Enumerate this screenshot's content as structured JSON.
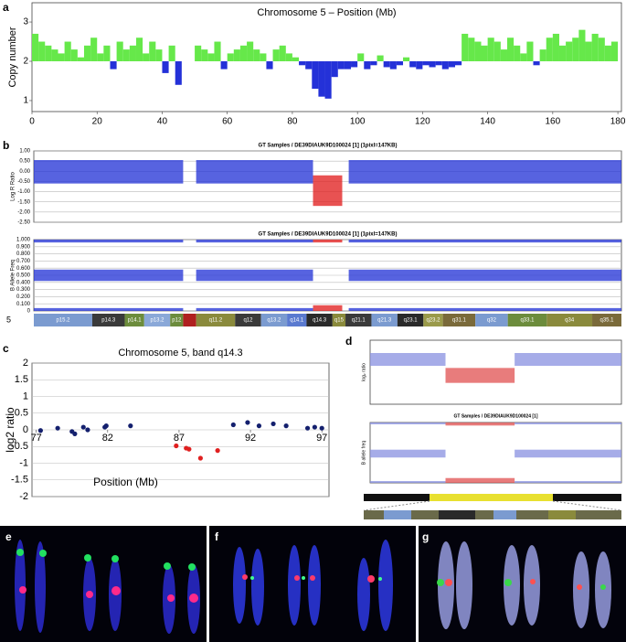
{
  "panels": {
    "a": "a",
    "b": "b",
    "c": "c",
    "d": "d",
    "e": "e",
    "f": "f",
    "g": "g"
  },
  "chart_data": [
    {
      "type": "bar",
      "title": "Chromosome 5 – Position (Mb)",
      "ylabel": "Copy number",
      "baseline": 2,
      "above_color": "#66e84a",
      "below_color": "#2431d8",
      "x": [
        1,
        3,
        5,
        7,
        9,
        11,
        13,
        15,
        17,
        19,
        21,
        23,
        25,
        27,
        29,
        31,
        33,
        35,
        37,
        39,
        41,
        43,
        45,
        47,
        49,
        51,
        53,
        55,
        57,
        59,
        61,
        63,
        65,
        67,
        69,
        71,
        73,
        75,
        77,
        79,
        81,
        83,
        85,
        87,
        89,
        91,
        93,
        95,
        97,
        99,
        101,
        103,
        105,
        107,
        109,
        111,
        113,
        115,
        117,
        119,
        121,
        123,
        125,
        127,
        129,
        131,
        133,
        135,
        137,
        139,
        141,
        143,
        145,
        147,
        149,
        151,
        153,
        155,
        157,
        159,
        161,
        163,
        165,
        167,
        169,
        171,
        173,
        175,
        177,
        179
      ],
      "values": [
        2.7,
        2.5,
        2.4,
        2.3,
        2.2,
        2.5,
        2.3,
        2.1,
        2.4,
        2.6,
        2.2,
        2.4,
        1.8,
        2.5,
        2.3,
        2.4,
        2.6,
        2.2,
        2.5,
        2.3,
        1.7,
        2.4,
        1.4,
        null,
        null,
        2.4,
        2.3,
        2.2,
        2.5,
        1.8,
        2.2,
        2.3,
        2.4,
        2.5,
        2.3,
        2.2,
        1.8,
        2.3,
        2.4,
        2.2,
        2.1,
        1.9,
        1.8,
        1.3,
        1.1,
        1.05,
        1.6,
        1.8,
        1.8,
        1.85,
        2.2,
        1.8,
        1.9,
        2.15,
        1.85,
        1.8,
        1.9,
        2.1,
        1.85,
        1.8,
        1.9,
        1.85,
        1.9,
        1.8,
        1.85,
        1.9,
        2.7,
        2.6,
        2.5,
        2.4,
        2.6,
        2.5,
        2.3,
        2.6,
        2.4,
        2.2,
        2.5,
        1.9,
        2.3,
        2.6,
        2.7,
        2.4,
        2.5,
        2.6,
        2.8,
        2.5,
        2.7,
        2.6,
        2.4,
        2.5
      ],
      "xlim": [
        0,
        181.1
      ],
      "ylim": [
        0.72,
        3.49
      ],
      "xticks": [
        0,
        20,
        40,
        60,
        80,
        100,
        120,
        140,
        160,
        180
      ],
      "yticks": [
        1,
        2,
        3
      ]
    },
    {
      "type": "scatter",
      "title": "GT Samples / DE39DIAUK9D100024 [1] (1pixl=147KB)",
      "ylabel": "Log R Ratio",
      "xlim": [
        0,
        181
      ],
      "ylim": [
        -2.5,
        1
      ],
      "yticks": [
        {
          "value": 1,
          "label": "1.00"
        },
        {
          "value": 0.5,
          "label": "0.50"
        },
        {
          "value": 0,
          "label": "0.00"
        },
        {
          "value": -0.5,
          "label": "-0.50"
        },
        {
          "value": -1,
          "label": "-1.00"
        },
        {
          "value": -1.5,
          "label": "-1.50"
        },
        {
          "value": -2,
          "label": "-2.00"
        },
        {
          "value": -2.5,
          "label": "-2.50"
        }
      ],
      "grid": true,
      "bands": [
        {
          "x": [
            0,
            46
          ],
          "y": [
            -0.6,
            0.55
          ],
          "color": "#1f2fd6"
        },
        {
          "x": [
            50,
            86
          ],
          "y": [
            -0.6,
            0.55
          ],
          "color": "#1f2fd6"
        },
        {
          "x": [
            86,
            95
          ],
          "y": [
            -1.7,
            -0.2
          ],
          "color": "#e01818"
        },
        {
          "x": [
            97,
            181
          ],
          "y": [
            -0.6,
            0.55
          ],
          "color": "#1f2fd6"
        }
      ]
    },
    {
      "type": "scatter",
      "title": "GT Samples / DE39DIAUK9D100024 [1] (1pixl=147KB)",
      "ylabel": "B Allele Freq",
      "xlim": [
        0,
        181
      ],
      "ylim": [
        0,
        1
      ],
      "yticks": [
        {
          "value": 1,
          "label": "1.000"
        },
        {
          "value": 0.9,
          "label": "0.900"
        },
        {
          "value": 0.8,
          "label": "0.800"
        },
        {
          "value": 0.7,
          "label": "0.700"
        },
        {
          "value": 0.6,
          "label": "0.600"
        },
        {
          "value": 0.5,
          "label": "0.500"
        },
        {
          "value": 0.4,
          "label": "0.400"
        },
        {
          "value": 0.3,
          "label": "0.300"
        },
        {
          "value": 0.2,
          "label": "0.200"
        },
        {
          "value": 0.1,
          "label": "0.100"
        },
        0
      ],
      "grid": true,
      "bands": [
        {
          "x": [
            0,
            46
          ],
          "y": [
            0,
            0.04
          ],
          "color": "#1f2fd6"
        },
        {
          "x": [
            0,
            46
          ],
          "y": [
            0.42,
            0.58
          ],
          "color": "#1f2fd6"
        },
        {
          "x": [
            0,
            46
          ],
          "y": [
            0.96,
            1
          ],
          "color": "#1f2fd6"
        },
        {
          "x": [
            50,
            86
          ],
          "y": [
            0,
            0.04
          ],
          "color": "#1f2fd6"
        },
        {
          "x": [
            50,
            86
          ],
          "y": [
            0.42,
            0.58
          ],
          "color": "#1f2fd6"
        },
        {
          "x": [
            50,
            86
          ],
          "y": [
            0.96,
            1
          ],
          "color": "#1f2fd6"
        },
        {
          "x": [
            86,
            95
          ],
          "y": [
            0,
            0.08
          ],
          "color": "#e01818"
        },
        {
          "x": [
            86,
            95
          ],
          "y": [
            0.96,
            1
          ],
          "color": "#e01818"
        },
        {
          "x": [
            97,
            181
          ],
          "y": [
            0,
            0.04
          ],
          "color": "#1f2fd6"
        },
        {
          "x": [
            97,
            181
          ],
          "y": [
            0.42,
            0.58
          ],
          "color": "#1f2fd6"
        },
        {
          "x": [
            97,
            181
          ],
          "y": [
            0.96,
            1
          ],
          "color": "#1f2fd6"
        }
      ]
    },
    {
      "type": "ideogram",
      "label": "5",
      "xlim": [
        0,
        181
      ],
      "bands": [
        {
          "name": "p15.2",
          "x": [
            0,
            18
          ],
          "color": "#7b9bd0"
        },
        {
          "name": "p14.3",
          "x": [
            18,
            28
          ],
          "color": "#3a3a3a"
        },
        {
          "name": "p14.1",
          "x": [
            28,
            34
          ],
          "color": "#6c8c3c"
        },
        {
          "name": "p13.2",
          "x": [
            34,
            42
          ],
          "color": "#8aa8d8"
        },
        {
          "name": "p12",
          "x": [
            42,
            46
          ],
          "color": "#6c8c3c"
        },
        {
          "name": null,
          "x": [
            46,
            50
          ],
          "color": "#b02020"
        },
        {
          "name": "q11.2",
          "x": [
            50,
            62
          ],
          "color": "#8a8a3c"
        },
        {
          "name": "q12",
          "x": [
            62,
            70
          ],
          "color": "#3a3a3a"
        },
        {
          "name": "q13.2",
          "x": [
            70,
            78
          ],
          "color": "#7b9bd0"
        },
        {
          "name": "q14.1",
          "x": [
            78,
            84
          ],
          "color": "#5a7ad0"
        },
        {
          "name": "q14.3",
          "x": [
            84,
            92
          ],
          "color": "#2a2a2a"
        },
        {
          "name": "q15",
          "x": [
            92,
            96
          ],
          "color": "#8a8a3c"
        },
        {
          "name": "q21.1",
          "x": [
            96,
            104
          ],
          "color": "#3a3a3a"
        },
        {
          "name": "q21.3",
          "x": [
            104,
            112
          ],
          "color": "#7b9bd0"
        },
        {
          "name": "q23.1",
          "x": [
            112,
            120
          ],
          "color": "#2a2a2a"
        },
        {
          "name": "q23.2",
          "x": [
            120,
            126
          ],
          "color": "#9a9a4a"
        },
        {
          "name": "q31.1",
          "x": [
            126,
            136
          ],
          "color": "#7a6a3a"
        },
        {
          "name": "q32",
          "x": [
            136,
            146
          ],
          "color": "#7b9bd0"
        },
        {
          "name": "q33.1",
          "x": [
            146,
            158
          ],
          "color": "#6c8c3c"
        },
        {
          "name": "q34",
          "x": [
            158,
            172
          ],
          "color": "#8a8a3c"
        },
        {
          "name": "q35.1",
          "x": [
            172,
            181
          ],
          "color": "#7a6a3a"
        }
      ]
    },
    {
      "type": "scatter",
      "title": "Chromosome 5, band q14.3",
      "xlabel": "Position (Mb)",
      "ylabel": "log2 ratio",
      "xlim": [
        76.7,
        97.5
      ],
      "ylim": [
        -2,
        2
      ],
      "xticks": [
        77,
        82,
        87,
        92,
        97
      ],
      "yticks": [
        2,
        1.5,
        1,
        0.5,
        0,
        -0.5,
        -1,
        -1.5,
        -2
      ],
      "grid": true,
      "series": [
        {
          "color": "#14206e",
          "x": [
            77.3,
            78.5,
            79.5,
            79.7,
            80.3,
            80.6,
            81.8,
            81.9,
            83.6,
            90.8,
            91.8,
            92.6,
            93.6,
            94.5,
            96.0,
            96.5,
            97.0
          ],
          "values": [
            -0.02,
            0.05,
            -0.05,
            -0.12,
            0.08,
            0,
            0.08,
            0.12,
            0.12,
            0.15,
            0.22,
            0.12,
            0.18,
            0.12,
            0.05,
            0.08,
            0.05
          ]
        },
        {
          "color": "#e02020",
          "x": [
            86.8,
            87.5,
            87.7,
            88.5,
            89.7
          ],
          "values": [
            -0.48,
            -0.55,
            -0.58,
            -0.85,
            -0.62
          ]
        }
      ]
    },
    {
      "type": "scatter",
      "ylabel": "log₂ ratio",
      "xlim": [
        70,
        110
      ],
      "ylim": [
        -2,
        1
      ],
      "bands": [
        {
          "x": [
            70,
            82
          ],
          "y": [
            -0.2,
            0.4
          ],
          "color": "#8890e0"
        },
        {
          "x": [
            82,
            93
          ],
          "y": [
            -1.0,
            -0.3
          ],
          "color": "#e05050"
        },
        {
          "x": [
            93,
            110
          ],
          "y": [
            -0.2,
            0.4
          ],
          "color": "#8890e0"
        }
      ]
    },
    {
      "type": "scatter",
      "title": "GT Samples / DE39DIAUK9D100024 [1]",
      "ylabel": "B allele freq",
      "xlim": [
        70,
        110
      ],
      "ylim": [
        0,
        1
      ],
      "bands": [
        {
          "x": [
            70,
            82
          ],
          "y": [
            0,
            0.03
          ],
          "color": "#8890e0"
        },
        {
          "x": [
            70,
            82
          ],
          "y": [
            0.42,
            0.55
          ],
          "color": "#8890e0"
        },
        {
          "x": [
            70,
            82
          ],
          "y": [
            0.97,
            1
          ],
          "color": "#8890e0"
        },
        {
          "x": [
            82,
            93
          ],
          "y": [
            0,
            0.08
          ],
          "color": "#e05050"
        },
        {
          "x": [
            82,
            93
          ],
          "y": [
            0.95,
            1
          ],
          "color": "#e05050"
        },
        {
          "x": [
            93,
            110
          ],
          "y": [
            0,
            0.03
          ],
          "color": "#8890e0"
        },
        {
          "x": [
            93,
            110
          ],
          "y": [
            0.42,
            0.55
          ],
          "color": "#8890e0"
        },
        {
          "x": [
            93,
            110
          ],
          "y": [
            0.97,
            1
          ],
          "color": "#8890e0"
        }
      ]
    }
  ]
}
